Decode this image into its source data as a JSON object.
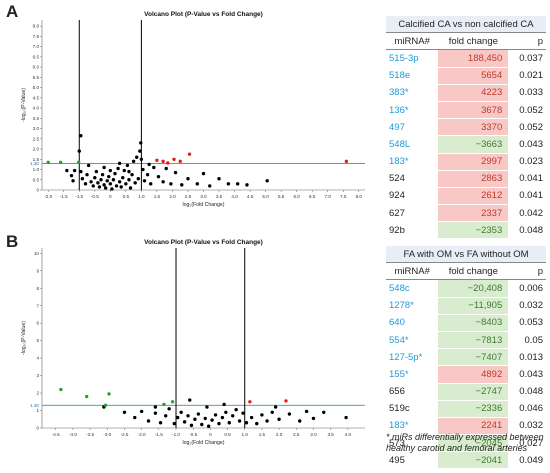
{
  "panels": {
    "a": {
      "letter": "A",
      "table": {
        "caption": "Calcified CA vs non calcified CA",
        "headers": [
          "miRNA#",
          "fold change",
          "p"
        ],
        "rows": [
          {
            "mirna": "515-3p",
            "fold": "188,450",
            "p": "0.037",
            "dir": "up",
            "highlight": true
          },
          {
            "mirna": "518e",
            "fold": "5654",
            "p": "0.021",
            "dir": "up",
            "highlight": true
          },
          {
            "mirna": "383*",
            "fold": "4223",
            "p": "0.033",
            "dir": "up",
            "highlight": true
          },
          {
            "mirna": "136*",
            "fold": "3678",
            "p": "0.052",
            "dir": "up",
            "highlight": true
          },
          {
            "mirna": "497",
            "fold": "3370",
            "p": "0.052",
            "dir": "up",
            "highlight": true
          },
          {
            "mirna": "548L",
            "fold": "−3663",
            "p": "0.043",
            "dir": "down",
            "highlight": true
          },
          {
            "mirna": "183*",
            "fold": "2997",
            "p": "0.023",
            "dir": "up",
            "highlight": true
          },
          {
            "mirna": "524",
            "fold": "2863",
            "p": "0.041",
            "dir": "up",
            "highlight": false
          },
          {
            "mirna": "924",
            "fold": "2612",
            "p": "0.041",
            "dir": "up",
            "highlight": false
          },
          {
            "mirna": "627",
            "fold": "2337",
            "p": "0.042",
            "dir": "up",
            "highlight": false
          },
          {
            "mirna": "92b",
            "fold": "−2353",
            "p": "0.048",
            "dir": "down",
            "highlight": false
          }
        ]
      }
    },
    "b": {
      "letter": "B",
      "table": {
        "caption": "FA with OM vs FA without OM",
        "headers": [
          "miRNA#",
          "fold change",
          "p"
        ],
        "rows": [
          {
            "mirna": "548c",
            "fold": "−20,408",
            "p": "0.006",
            "dir": "down",
            "highlight": true
          },
          {
            "mirna": "1278*",
            "fold": "−11,905",
            "p": "0.032",
            "dir": "down",
            "highlight": true
          },
          {
            "mirna": "640",
            "fold": "−8403",
            "p": "0.053",
            "dir": "down",
            "highlight": true
          },
          {
            "mirna": "554*",
            "fold": "−7813",
            "p": "0.05",
            "dir": "down",
            "highlight": true
          },
          {
            "mirna": "127-5p*",
            "fold": "−7407",
            "p": "0.013",
            "dir": "down",
            "highlight": true
          },
          {
            "mirna": "155*",
            "fold": "4892",
            "p": "0.043",
            "dir": "up",
            "highlight": true
          },
          {
            "mirna": "656",
            "fold": "−2747",
            "p": "0.048",
            "dir": "down",
            "highlight": false
          },
          {
            "mirna": "519c",
            "fold": "−2336",
            "p": "0.046",
            "dir": "down",
            "highlight": false
          },
          {
            "mirna": "183*",
            "fold": "2241",
            "p": "0.032",
            "dir": "up",
            "highlight": true
          },
          {
            "mirna": "573",
            "fold": "−2045",
            "p": "0.027",
            "dir": "down",
            "highlight": false
          },
          {
            "mirna": "495",
            "fold": "−2041",
            "p": "0.049",
            "dir": "down",
            "highlight": false
          }
        ]
      }
    }
  },
  "footnote": "* miRs differentially expressed between healthy carotid and femoral arteries",
  "colors": {
    "up": "#e0201b",
    "down": "#2ca02c",
    "neutral": "#000000",
    "threshold": "#1f77b4",
    "highlight_text": "#1e9ad6"
  },
  "chart_data": [
    {
      "type": "scatter",
      "title": "Volcano Plot (P-Value vs Fold Change)",
      "xlabel": "log₂(Fold Change)",
      "ylabel": "-log₁₀(P-Value)",
      "xlim": [
        -2.2,
        8.2
      ],
      "ylim": [
        0,
        8.3
      ],
      "xticks": [
        "-2.0",
        "-1.5",
        "-1.0",
        "-0.5",
        "0",
        "0.5",
        "1.0",
        "1.5",
        "2.0",
        "2.5",
        "3.0",
        "3.5",
        "4.0",
        "4.5",
        "5.0",
        "5.5",
        "6.0",
        "6.5",
        "7.0",
        "7.5",
        "8.0"
      ],
      "yticks": [
        "0",
        "0.5",
        "1.0",
        "1.5",
        "2.0",
        "2.5",
        "3.0",
        "3.5",
        "4.0",
        "4.5",
        "5.0",
        "5.5",
        "6.0",
        "6.5",
        "7.0",
        "7.5",
        "8.0"
      ],
      "fold_lines": [
        -1,
        1
      ],
      "threshold": 1.3,
      "threshold_label": "1.30",
      "up_points": [
        [
          1.5,
          1.45
        ],
        [
          1.7,
          1.4
        ],
        [
          1.85,
          1.32
        ],
        [
          2.05,
          1.5
        ],
        [
          2.25,
          1.4
        ],
        [
          2.55,
          1.75
        ],
        [
          7.6,
          1.4
        ]
      ],
      "down_points": [
        [
          -2.0,
          1.35
        ],
        [
          -1.6,
          1.35
        ],
        [
          -1.02,
          1.35
        ]
      ],
      "neutral_points": [
        [
          -1.4,
          0.95
        ],
        [
          -1.25,
          0.7
        ],
        [
          -1.15,
          0.95
        ],
        [
          -0.95,
          0.9
        ],
        [
          -0.9,
          0.55
        ],
        [
          -0.8,
          0.3
        ],
        [
          -0.75,
          0.75
        ],
        [
          -0.7,
          1.2
        ],
        [
          -0.62,
          0.4
        ],
        [
          -0.55,
          0.2
        ],
        [
          -0.5,
          0.6
        ],
        [
          -0.45,
          0.9
        ],
        [
          -0.4,
          0.35
        ],
        [
          -0.35,
          0.15
        ],
        [
          -0.3,
          0.5
        ],
        [
          -0.25,
          0.75
        ],
        [
          -0.2,
          0.25
        ],
        [
          -0.15,
          0.1
        ],
        [
          -0.1,
          0.45
        ],
        [
          -0.05,
          0.65
        ],
        [
          0.0,
          0.3
        ],
        [
          0.05,
          0.05
        ],
        [
          0.1,
          0.5
        ],
        [
          0.15,
          0.8
        ],
        [
          0.2,
          0.2
        ],
        [
          0.25,
          1.05
        ],
        [
          0.3,
          0.4
        ],
        [
          0.35,
          0.15
        ],
        [
          0.4,
          0.6
        ],
        [
          0.45,
          0.95
        ],
        [
          0.5,
          0.3
        ],
        [
          0.55,
          1.2
        ],
        [
          0.6,
          0.5
        ],
        [
          0.65,
          0.1
        ],
        [
          0.7,
          0.75
        ],
        [
          0.75,
          1.4
        ],
        [
          0.8,
          0.35
        ],
        [
          0.85,
          1.6
        ],
        [
          0.9,
          0.55
        ],
        [
          0.95,
          1.9
        ],
        [
          0.98,
          2.3
        ],
        [
          1.05,
          1.0
        ],
        [
          1.1,
          0.45
        ],
        [
          1.2,
          0.75
        ],
        [
          1.3,
          0.3
        ],
        [
          1.4,
          1.1
        ],
        [
          1.55,
          0.65
        ],
        [
          1.7,
          0.4
        ],
        [
          1.8,
          1.05
        ],
        [
          1.95,
          0.3
        ],
        [
          2.1,
          0.85
        ],
        [
          2.3,
          0.25
        ],
        [
          2.5,
          0.55
        ],
        [
          2.8,
          0.3
        ],
        [
          3.0,
          0.8
        ],
        [
          3.2,
          0.2
        ],
        [
          3.5,
          0.55
        ],
        [
          3.8,
          0.3
        ],
        [
          4.1,
          0.3
        ],
        [
          4.4,
          0.25
        ],
        [
          5.05,
          0.45
        ],
        [
          -0.95,
          2.65
        ],
        [
          -1.0,
          1.9
        ],
        [
          0.0,
          0.95
        ],
        [
          0.3,
          1.3
        ],
        [
          -0.2,
          1.1
        ],
        [
          0.6,
          0.9
        ],
        [
          1.0,
          1.5
        ],
        [
          1.25,
          1.25
        ],
        [
          -1.2,
          0.45
        ]
      ]
    },
    {
      "type": "scatter",
      "title": "Volcano Plot (P-Value vs Fold Change)",
      "xlabel": "log₂(Fold Change)",
      "ylabel": "-log₁₀(P-Value)",
      "xlim": [
        -4.9,
        4.5
      ],
      "ylim": [
        0,
        10.3
      ],
      "xticks": [
        "-4.5",
        "-4.0",
        "-3.5",
        "-3.0",
        "-2.5",
        "-2.0",
        "-1.5",
        "-1.0",
        "-0.5",
        "0",
        "0.5",
        "1.0",
        "1.5",
        "2.0",
        "2.5",
        "3.0",
        "3.5",
        "4.0"
      ],
      "yticks": [
        "0",
        "1",
        "2",
        "3",
        "4",
        "5",
        "6",
        "7",
        "8",
        "9",
        "10"
      ],
      "fold_lines": [
        -1,
        1
      ],
      "threshold": 1.3,
      "threshold_label": "1.30",
      "up_points": [
        [
          1.15,
          1.5
        ],
        [
          2.2,
          1.55
        ]
      ],
      "down_points": [
        [
          -4.35,
          2.2
        ],
        [
          -3.6,
          1.8
        ],
        [
          -3.05,
          1.3
        ],
        [
          -2.95,
          1.95
        ],
        [
          -1.35,
          1.35
        ],
        [
          -1.1,
          1.5
        ]
      ],
      "neutral_points": [
        [
          -3.1,
          1.2
        ],
        [
          -2.5,
          0.9
        ],
        [
          -2.2,
          0.6
        ],
        [
          -2.0,
          0.95
        ],
        [
          -1.8,
          0.4
        ],
        [
          -1.6,
          0.85
        ],
        [
          -1.45,
          0.3
        ],
        [
          -1.3,
          0.7
        ],
        [
          -1.2,
          1.1
        ],
        [
          -1.05,
          0.25
        ],
        [
          -0.95,
          0.6
        ],
        [
          -0.85,
          0.9
        ],
        [
          -0.75,
          0.35
        ],
        [
          -0.65,
          0.7
        ],
        [
          -0.55,
          0.15
        ],
        [
          -0.45,
          0.5
        ],
        [
          -0.35,
          0.8
        ],
        [
          -0.25,
          0.2
        ],
        [
          -0.15,
          0.55
        ],
        [
          -0.05,
          0.1
        ],
        [
          0.05,
          0.45
        ],
        [
          0.15,
          0.75
        ],
        [
          0.25,
          0.25
        ],
        [
          0.35,
          0.6
        ],
        [
          0.45,
          0.9
        ],
        [
          0.55,
          0.3
        ],
        [
          0.65,
          0.7
        ],
        [
          0.75,
          1.05
        ],
        [
          0.85,
          0.4
        ],
        [
          0.95,
          0.85
        ],
        [
          1.05,
          0.3
        ],
        [
          1.2,
          0.6
        ],
        [
          1.35,
          0.25
        ],
        [
          1.5,
          0.75
        ],
        [
          1.65,
          0.4
        ],
        [
          1.8,
          0.9
        ],
        [
          2.0,
          0.5
        ],
        [
          2.3,
          0.8
        ],
        [
          2.6,
          0.4
        ],
        [
          2.8,
          0.95
        ],
        [
          3.0,
          0.55
        ],
        [
          3.3,
          0.9
        ],
        [
          3.95,
          0.6
        ],
        [
          -0.6,
          1.6
        ],
        [
          -0.1,
          1.2
        ],
        [
          0.4,
          1.35
        ],
        [
          -1.6,
          1.2
        ],
        [
          1.9,
          1.2
        ]
      ]
    }
  ]
}
